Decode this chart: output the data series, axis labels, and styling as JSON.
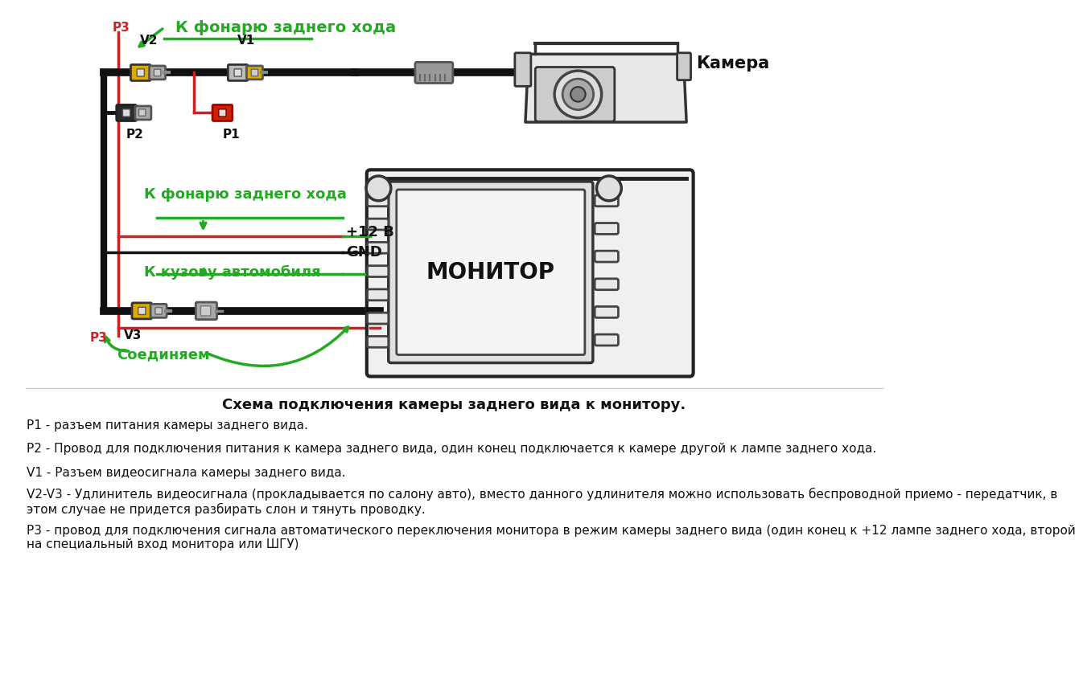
{
  "background_color": "#ffffff",
  "title": "Схема подключения камеры заднего вида к монитору.",
  "title_fontsize": 13,
  "description_lines": [
    "Р1 - разъем питания камеры заднего вида.",
    "Р2 - Провод для подключения питания к камера заднего вида, один конец подключается к камере другой к лампе заднего хода.",
    "V1 - Разъем видеосигнала камеры заднего вида.",
    "V2-V3 - Удлинитель видеосигнала (прокладывается по салону авто), вместо данного удлинителя можно использовать беспроводной приемо - передатчик, в\nэтом случае не придется разбирать слон и тянуть проводку.",
    "Р3 - провод для подключения сигнала автоматического переключения монитора в режим камеры заднего вида (один конец к +12 лампе заднего хода, второй\nна специальный вход монитора или ШГУ)"
  ],
  "green_color": "#22aa22",
  "red_color": "#cc2222",
  "black_color": "#111111",
  "yellow_color": "#ddaa00",
  "gray_color": "#888888"
}
